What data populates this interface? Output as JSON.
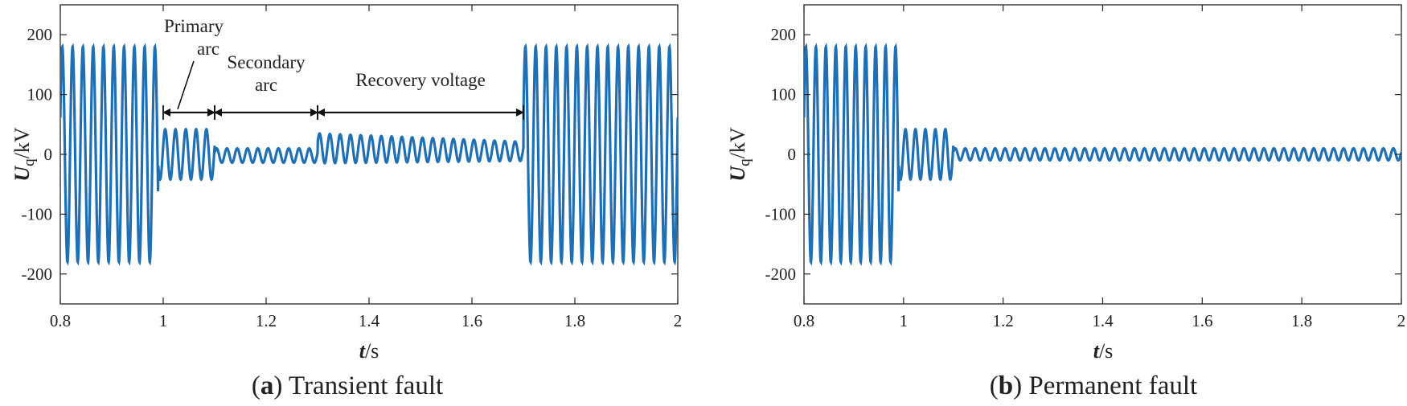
{
  "panels": [
    {
      "caption_letter": "a",
      "caption_text": "Transient fault",
      "ylabel_main": "U",
      "ylabel_sub": "q",
      "ylabel_unit": "/kV",
      "xlabel_main": "t",
      "xlabel_unit": "/s",
      "x_tick_labels": [
        "0.8",
        "1",
        "1.2",
        "1.4",
        "1.6",
        "1.8",
        "2"
      ],
      "y_tick_labels": [
        "200",
        "100",
        "0",
        "-100",
        "-200"
      ],
      "annotations": [
        {
          "lines": [
            "Primary",
            "arc"
          ]
        },
        {
          "lines": [
            "Secondary",
            "arc"
          ]
        },
        {
          "lines": [
            "Recovery voltage"
          ]
        }
      ]
    },
    {
      "caption_letter": "b",
      "caption_text": "Permanent fault",
      "ylabel_main": "U",
      "ylabel_sub": "q",
      "ylabel_unit": "/kV",
      "xlabel_main": "t",
      "xlabel_unit": "/s",
      "x_tick_labels": [
        "0.8",
        "1",
        "1.2",
        "1.4",
        "1.6",
        "1.8",
        "2"
      ],
      "y_tick_labels": [
        "200",
        "100",
        "0",
        "-100",
        "-200"
      ],
      "annotations": []
    }
  ],
  "chart_data": [
    {
      "type": "line",
      "x_ticks": [
        0.8,
        1.0,
        1.2,
        1.4,
        1.6,
        1.8,
        2.0
      ],
      "y_ticks": [
        200,
        100,
        0,
        -100,
        -200
      ],
      "xlim": [
        0.8,
        2.0
      ],
      "ylim": [
        -250,
        250
      ],
      "grid": false,
      "series": [
        {
          "color": "#1f6fb5",
          "frequency_hz": 50,
          "segments": [
            {
              "t_start": 0.8,
              "t_end": 0.99,
              "amplitude": 180,
              "offset": 0
            },
            {
              "t_start": 0.99,
              "t_end": 1.1,
              "amplitude": 42,
              "offset": 0
            },
            {
              "t_start": 1.1,
              "t_end": 1.3,
              "amplitude": 12,
              "offset": -2
            },
            {
              "t_start": 1.3,
              "t_end": 1.7,
              "amplitude_start": 25,
              "amplitude_end": 16,
              "offset_start": 10,
              "offset_end": 5
            },
            {
              "t_start": 1.7,
              "t_end": 2.0,
              "amplitude": 180,
              "offset": 0
            }
          ]
        }
      ],
      "annotations": [
        {
          "text": "Primary arc",
          "t_start": 1.0,
          "t_end": 1.1,
          "y": 70
        },
        {
          "text": "Secondary arc",
          "t_start": 1.1,
          "t_end": 1.3,
          "y": 70
        },
        {
          "text": "Recovery voltage",
          "t_start": 1.3,
          "t_end": 1.7,
          "y": 70
        }
      ]
    },
    {
      "type": "line",
      "x_ticks": [
        0.8,
        1.0,
        1.2,
        1.4,
        1.6,
        1.8,
        2.0
      ],
      "y_ticks": [
        200,
        100,
        0,
        -100,
        -200
      ],
      "xlim": [
        0.8,
        2.0
      ],
      "ylim": [
        -250,
        250
      ],
      "grid": false,
      "series": [
        {
          "color": "#1f6fb5",
          "frequency_hz": 50,
          "segments": [
            {
              "t_start": 0.8,
              "t_end": 0.99,
              "amplitude": 180,
              "offset": 0
            },
            {
              "t_start": 0.99,
              "t_end": 1.1,
              "amplitude": 42,
              "offset": 0
            },
            {
              "t_start": 1.1,
              "t_end": 2.0,
              "amplitude": 10,
              "offset": 0
            }
          ]
        }
      ],
      "annotations": []
    }
  ]
}
